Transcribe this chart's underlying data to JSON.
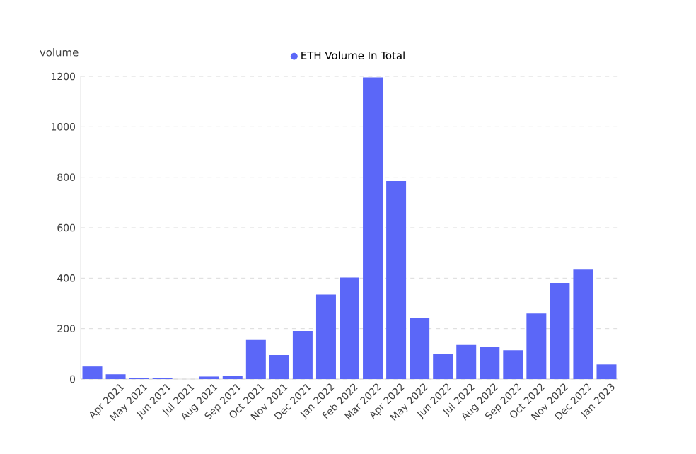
{
  "chart_data": {
    "type": "bar",
    "ylabel": "volume",
    "categories": [
      null,
      "Apr 2021",
      "May 2021",
      "Jun 2021",
      "Jul 2021",
      "Aug 2021",
      "Sep 2021",
      "Oct 2021",
      "Nov 2021",
      "Dec 2021",
      "Jan 2022",
      "Feb 2022",
      "Mar 2022",
      "Apr 2022",
      "May 2022",
      "Jun 2022",
      "Jul 2022",
      "Aug 2022",
      "Sep 2022",
      "Oct 2022",
      "Nov 2022",
      "Dec 2022",
      "Jan 2023"
    ],
    "series": [
      {
        "name": "ETH Volume In Total",
        "color": "#5b67f8",
        "values": [
          50,
          19,
          3,
          3,
          0,
          10,
          12,
          155,
          95,
          191,
          335,
          402,
          1196,
          785,
          243,
          99,
          135,
          127,
          114,
          260,
          381,
          434,
          58
        ]
      }
    ],
    "ylim": [
      0,
      1200
    ],
    "yticks": [
      0,
      200,
      400,
      600,
      800,
      1000,
      1200
    ],
    "grid": "y",
    "legend": "top",
    "marker": "circle"
  }
}
